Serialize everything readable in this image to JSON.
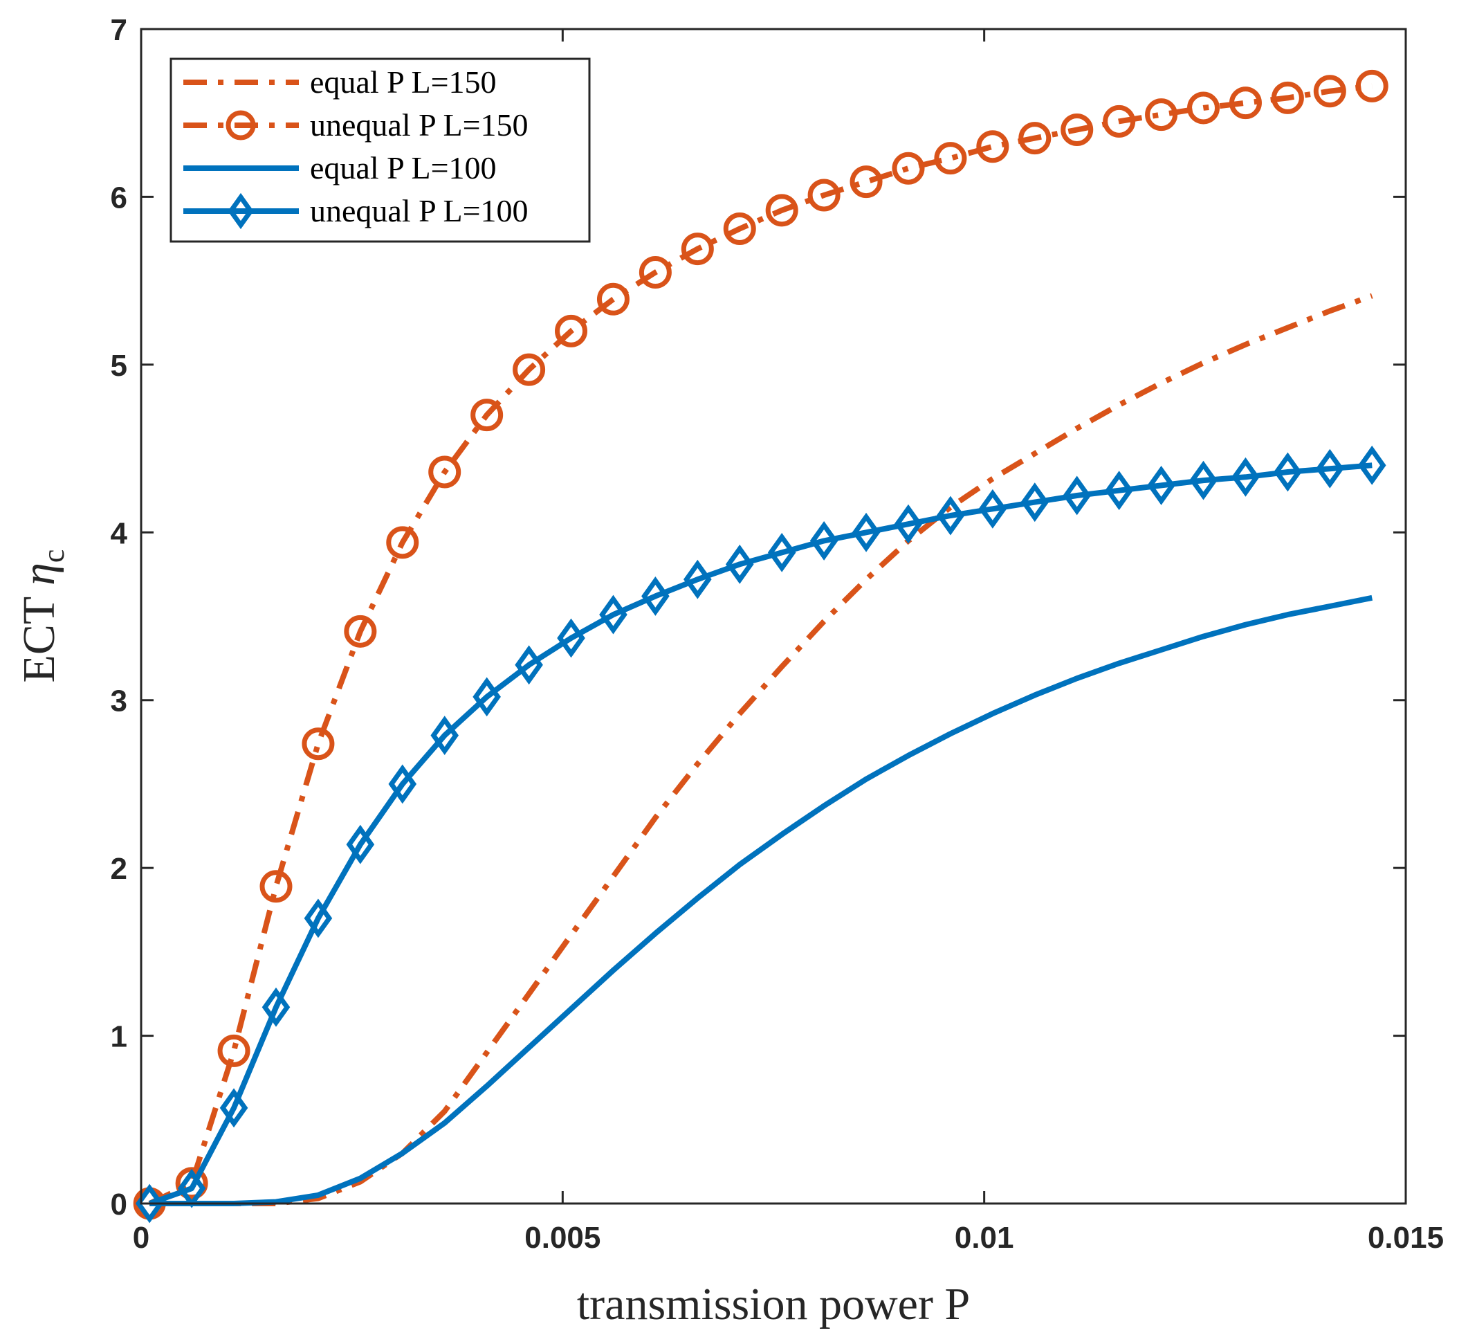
{
  "chart_data": {
    "type": "line",
    "xlabel": "transmission power P",
    "ylabel_main": "ECT",
    "ylabel_symbol": "η",
    "ylabel_sub": "c",
    "xlim": [
      0,
      0.015
    ],
    "ylim": [
      0,
      7
    ],
    "x_ticks": [
      {
        "value": 0,
        "label": "0"
      },
      {
        "value": 0.005,
        "label": "0.005"
      },
      {
        "value": 0.01,
        "label": "0.01"
      },
      {
        "value": 0.015,
        "label": "0.015"
      }
    ],
    "y_ticks": [
      {
        "value": 0,
        "label": "0"
      },
      {
        "value": 1,
        "label": "1"
      },
      {
        "value": 2,
        "label": "2"
      },
      {
        "value": 3,
        "label": "3"
      },
      {
        "value": 4,
        "label": "4"
      },
      {
        "value": 5,
        "label": "5"
      },
      {
        "value": 6,
        "label": "6"
      },
      {
        "value": 7,
        "label": "7"
      }
    ],
    "grid": false,
    "legend_position": "top-left",
    "x": [
      0.0001,
      0.0006,
      0.0011,
      0.0016,
      0.0021,
      0.0026,
      0.0031,
      0.0036,
      0.0041,
      0.0046,
      0.0051,
      0.0056,
      0.0061,
      0.0066,
      0.0071,
      0.0076,
      0.0081,
      0.0086,
      0.0091,
      0.0096,
      0.0101,
      0.0106,
      0.0111,
      0.0116,
      0.0121,
      0.0126,
      0.0131,
      0.0136,
      0.0141,
      0.0146
    ],
    "series": [
      {
        "name": "equal P L=150",
        "color": "#D95319",
        "style": "dashdot",
        "marker": "none",
        "values": [
          0,
          0,
          0,
          0,
          0.03,
          0.13,
          0.3,
          0.55,
          0.9,
          1.25,
          1.6,
          1.95,
          2.3,
          2.62,
          2.92,
          3.2,
          3.47,
          3.72,
          3.95,
          4.15,
          4.32,
          4.47,
          4.62,
          4.76,
          4.89,
          5.01,
          5.12,
          5.22,
          5.32,
          5.41
        ]
      },
      {
        "name": "unequal P L=150",
        "color": "#D95319",
        "style": "dashdot",
        "marker": "circle",
        "values": [
          0,
          0.12,
          0.91,
          1.89,
          2.74,
          3.41,
          3.94,
          4.36,
          4.7,
          4.97,
          5.2,
          5.39,
          5.55,
          5.69,
          5.81,
          5.92,
          6.01,
          6.09,
          6.17,
          6.23,
          6.3,
          6.35,
          6.4,
          6.45,
          6.49,
          6.53,
          6.56,
          6.59,
          6.63,
          6.66
        ]
      },
      {
        "name": "equal P L=100",
        "color": "#0072BD",
        "style": "solid",
        "marker": "none",
        "values": [
          0,
          0,
          0,
          0.01,
          0.05,
          0.15,
          0.3,
          0.48,
          0.7,
          0.93,
          1.16,
          1.39,
          1.61,
          1.82,
          2.02,
          2.2,
          2.37,
          2.53,
          2.67,
          2.8,
          2.92,
          3.03,
          3.13,
          3.22,
          3.3,
          3.38,
          3.45,
          3.51,
          3.56,
          3.61
        ]
      },
      {
        "name": "unequal P L=100",
        "color": "#0072BD",
        "style": "solid",
        "marker": "diamond",
        "values": [
          0,
          0.09,
          0.57,
          1.17,
          1.7,
          2.14,
          2.5,
          2.79,
          3.02,
          3.21,
          3.37,
          3.51,
          3.62,
          3.72,
          3.81,
          3.88,
          3.95,
          4.0,
          4.05,
          4.1,
          4.14,
          4.18,
          4.22,
          4.25,
          4.28,
          4.31,
          4.33,
          4.36,
          4.38,
          4.4
        ]
      }
    ]
  }
}
